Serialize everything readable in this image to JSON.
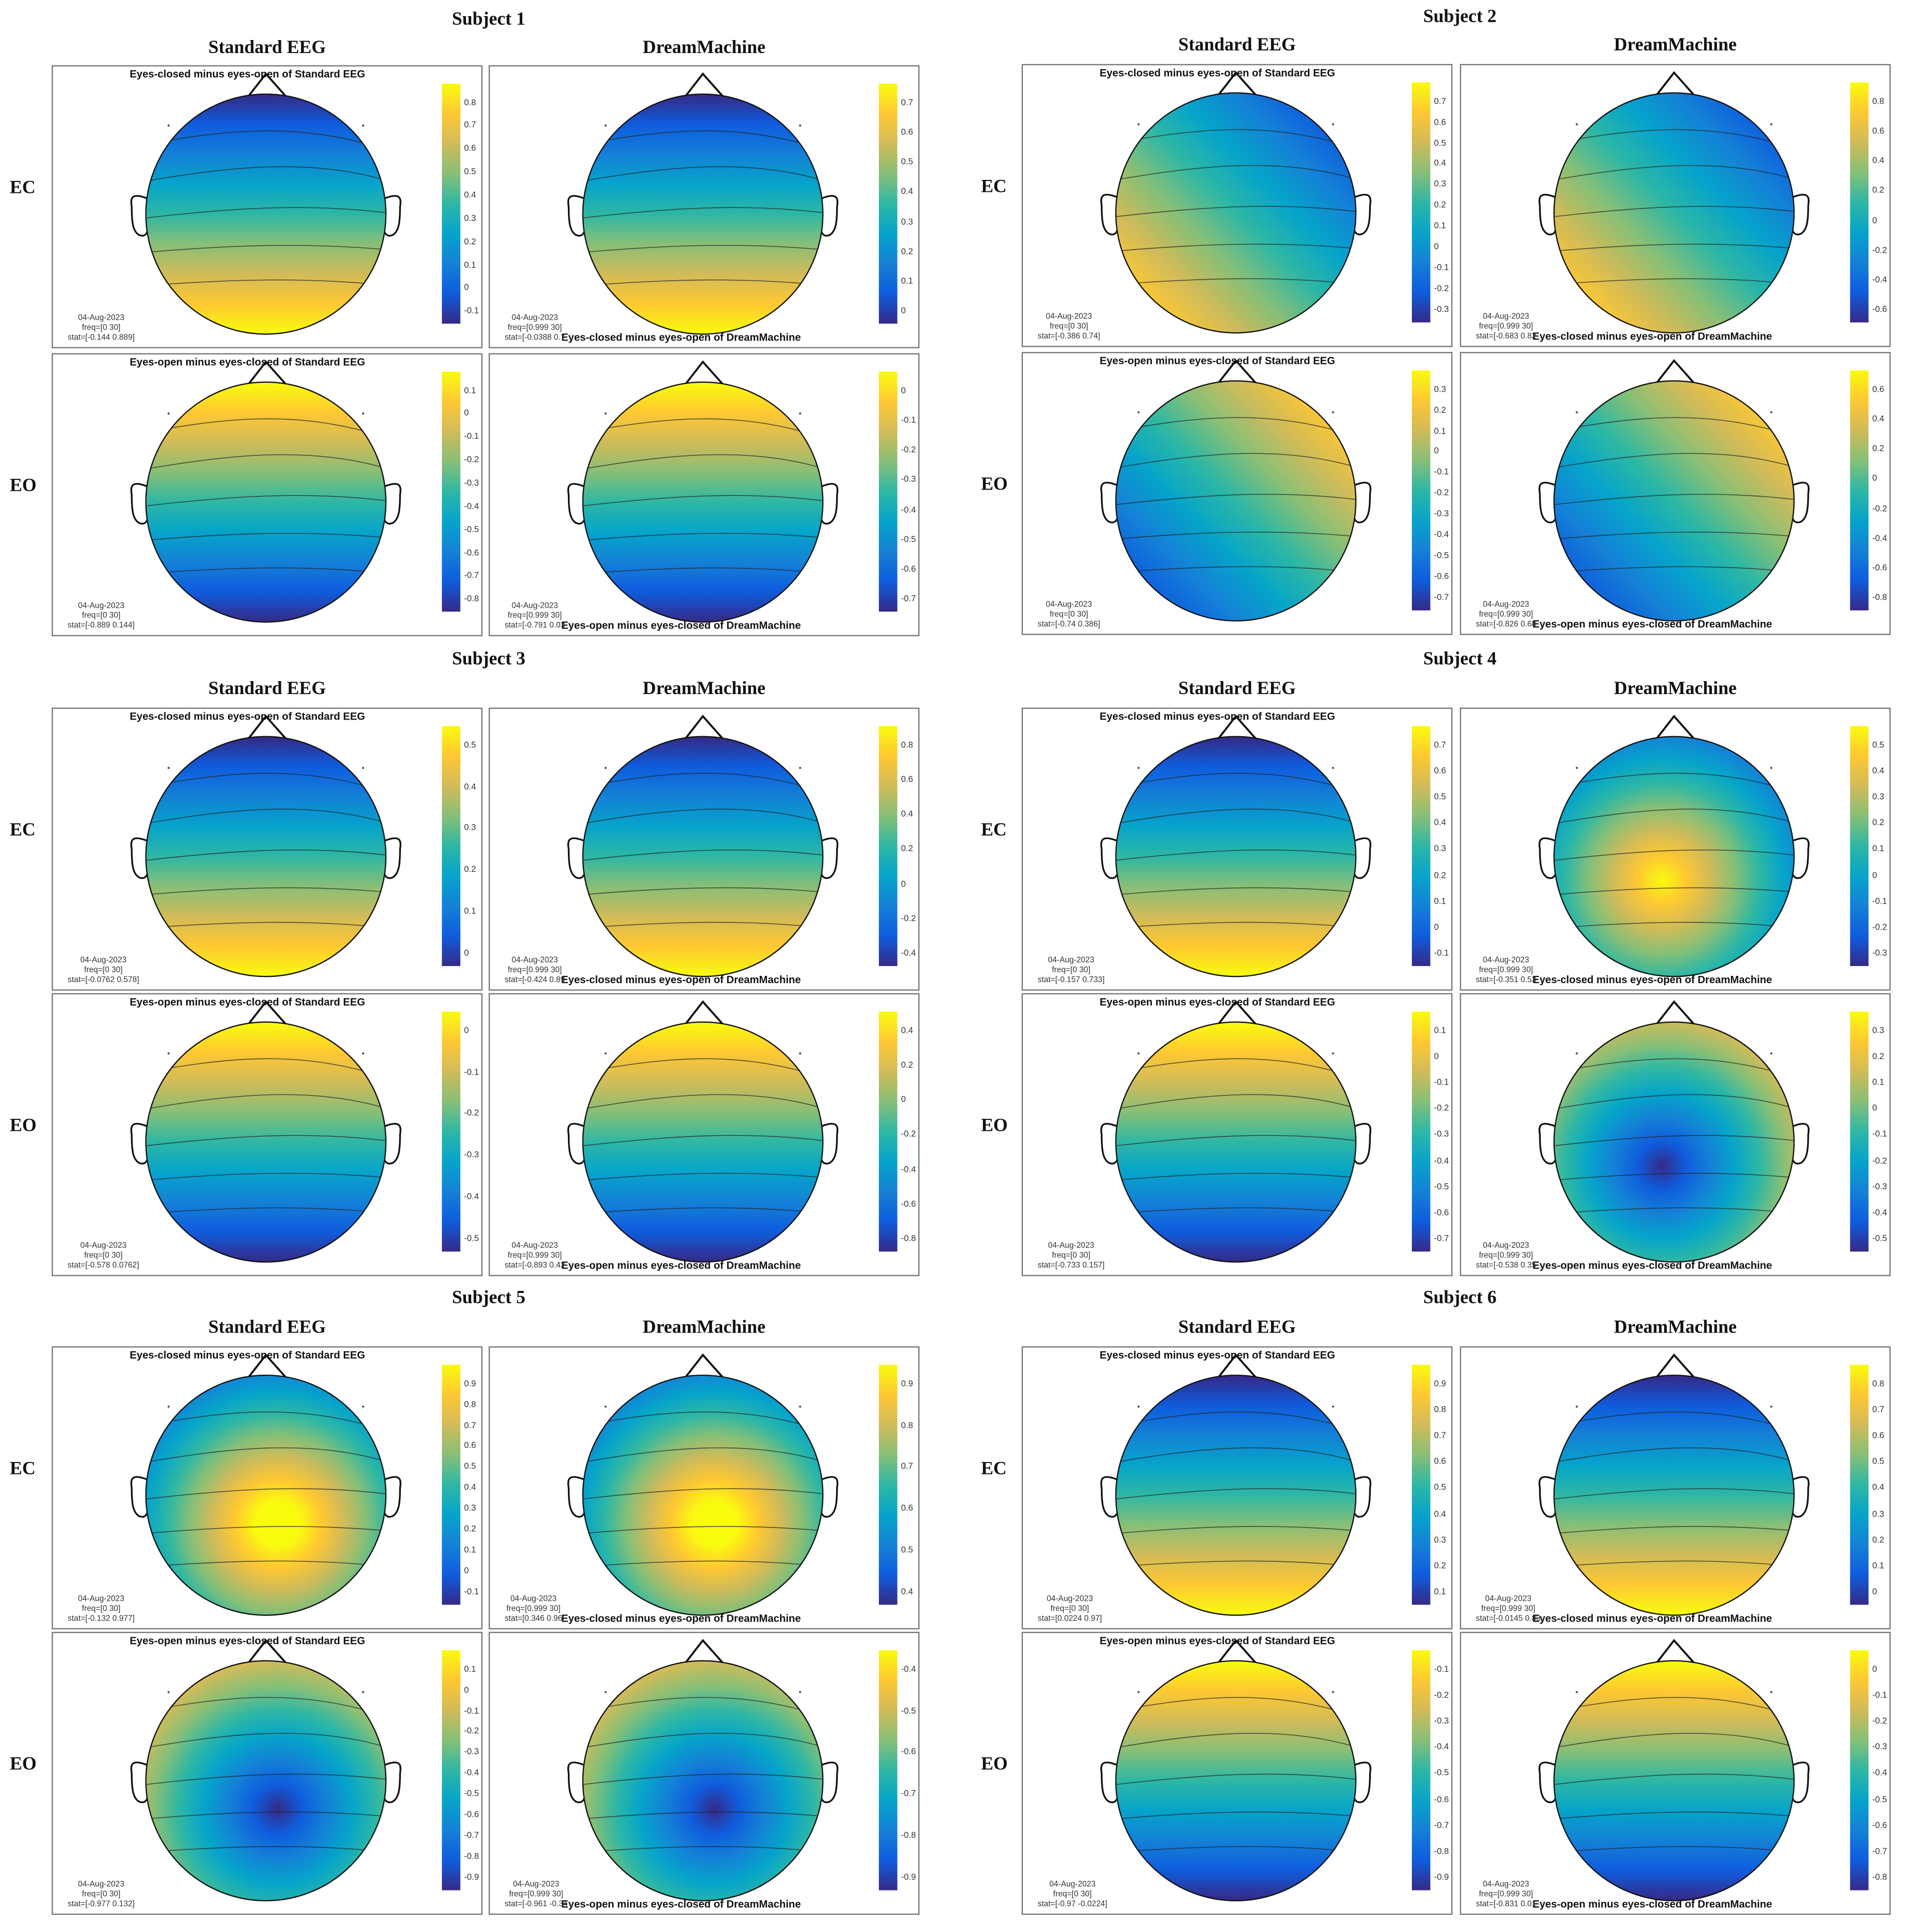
{
  "chart_data": {
    "type": "heatmap",
    "columns": [
      "Standard EEG",
      "DreamMachine"
    ],
    "conditions": [
      "EC",
      "EO"
    ],
    "colormap": [
      "#352a87",
      "#0f5cdd",
      "#1481d6",
      "#06a4ca",
      "#2eb7a4",
      "#87bf77",
      "#d1bb59",
      "#fec832",
      "#f9fb0e"
    ],
    "subjects": [
      {
        "title": "Subject 1",
        "panels": [
          {
            "title": "Eyes-closed minus eyes-open of Standard EEG",
            "date": "04-Aug-2023",
            "freq": "freq=[0 30]",
            "stat": "stat=[-0.144 0.889]",
            "ticks": [
              "0.8",
              "0.7",
              "0.6",
              "0.5",
              "0.4",
              "0.3",
              "0.2",
              "0.1",
              "0",
              "-0.1"
            ]
          },
          {
            "title": "Eyes-closed minus eyes-open of DreamMachine",
            "date": "04-Aug-2023",
            "freq": "freq=[0.999 30]",
            "stat": "stat=[-0.0388 0.7",
            "ticks": [
              "0.7",
              "0.6",
              "0.5",
              "0.4",
              "0.3",
              "0.2",
              "0.1",
              "0"
            ]
          },
          {
            "title": "Eyes-open minus eyes-closed of Standard EEG",
            "date": "04-Aug-2023",
            "freq": "freq=[0 30]",
            "stat": "stat=[-0.889 0.144]",
            "ticks": [
              "0.1",
              "0",
              "-0.1",
              "-0.2",
              "-0.3",
              "-0.4",
              "-0.5",
              "-0.6",
              "-0.7",
              "-0.8"
            ]
          },
          {
            "title": "Eyes-open minus eyes-closed of DreamMachine",
            "date": "04-Aug-2023",
            "freq": "freq=[0.999 30]",
            "stat": "stat=[-0.791 0.03",
            "ticks": [
              "0",
              "-0.1",
              "-0.2",
              "-0.3",
              "-0.4",
              "-0.5",
              "-0.6",
              "-0.7"
            ]
          }
        ]
      },
      {
        "title": "Subject 2",
        "panels": [
          {
            "title": "Eyes-closed minus eyes-open of Standard EEG",
            "date": "04-Aug-2023",
            "freq": "freq=[0 30]",
            "stat": "stat=[-0.386 0.74]",
            "ticks": [
              "0.7",
              "0.6",
              "0.5",
              "0.4",
              "0.3",
              "0.2",
              "0.1",
              "0",
              "-0.1",
              "-0.2",
              "-0.3"
            ]
          },
          {
            "title": "Eyes-closed minus eyes-open of DreamMachine",
            "date": "04-Aug-2023",
            "freq": "freq=[0.999 30]",
            "stat": "stat=[-0.683 0.82",
            "ticks": [
              "0.8",
              "0.6",
              "0.4",
              "0.2",
              "0",
              "-0.2",
              "-0.4",
              "-0.6"
            ]
          },
          {
            "title": "Eyes-open minus eyes-closed of Standard EEG",
            "date": "04-Aug-2023",
            "freq": "freq=[0 30]",
            "stat": "stat=[-0.74 0.386]",
            "ticks": [
              "0.3",
              "0.2",
              "0.1",
              "0",
              "-0.1",
              "-0.2",
              "-0.3",
              "-0.4",
              "-0.5",
              "-0.6",
              "-0.7"
            ]
          },
          {
            "title": "Eyes-open minus eyes-closed of DreamMachine",
            "date": "04-Aug-2023",
            "freq": "freq=[0.999 30]",
            "stat": "stat=[-0.826 0.68",
            "ticks": [
              "0.6",
              "0.4",
              "0.2",
              "0",
              "-0.2",
              "-0.4",
              "-0.6",
              "-0.8"
            ]
          }
        ]
      },
      {
        "title": "Subject 3",
        "panels": [
          {
            "title": "Eyes-closed minus eyes-open of Standard EEG",
            "date": "04-Aug-2023",
            "freq": "freq=[0 30]",
            "stat": "stat=[-0.0762 0.578]",
            "ticks": [
              "0.5",
              "0.4",
              "0.3",
              "0.2",
              "0.1",
              "0"
            ]
          },
          {
            "title": "Eyes-closed minus eyes-open of DreamMachine",
            "date": "04-Aug-2023",
            "freq": "freq=[0.999 30]",
            "stat": "stat=[-0.424 0.89",
            "ticks": [
              "0.8",
              "0.6",
              "0.4",
              "0.2",
              "0",
              "-0.2",
              "-0.4"
            ]
          },
          {
            "title": "Eyes-open minus eyes-closed of Standard EEG",
            "date": "04-Aug-2023",
            "freq": "freq=[0 30]",
            "stat": "stat=[-0.578 0.0762]",
            "ticks": [
              "0",
              "-0.1",
              "-0.2",
              "-0.3",
              "-0.4",
              "-0.5"
            ]
          },
          {
            "title": "Eyes-open minus eyes-closed of DreamMachine",
            "date": "04-Aug-2023",
            "freq": "freq=[0.999 30]",
            "stat": "stat=[-0.893 0.42",
            "ticks": [
              "0.4",
              "0.2",
              "0",
              "-0.2",
              "-0.4",
              "-0.6",
              "-0.8"
            ]
          }
        ]
      },
      {
        "title": "Subject 4",
        "panels": [
          {
            "title": "Eyes-closed minus eyes-open of Standard EEG",
            "date": "04-Aug-2023",
            "freq": "freq=[0 30]",
            "stat": "stat=[-0.157 0.733]",
            "ticks": [
              "0.7",
              "0.6",
              "0.5",
              "0.4",
              "0.3",
              "0.2",
              "0.1",
              "0",
              "-0.1"
            ]
          },
          {
            "title": "Eyes-closed minus eyes-open of DreamMachine",
            "date": "04-Aug-2023",
            "freq": "freq=[0.999 30]",
            "stat": "stat=[-0.351 0.53",
            "ticks": [
              "0.5",
              "0.4",
              "0.3",
              "0.2",
              "0.1",
              "0",
              "-0.1",
              "-0.2",
              "-0.3"
            ]
          },
          {
            "title": "Eyes-open minus eyes-closed of Standard EEG",
            "date": "04-Aug-2023",
            "freq": "freq=[0 30]",
            "stat": "stat=[-0.733 0.157]",
            "ticks": [
              "0.1",
              "0",
              "-0.1",
              "-0.2",
              "-0.3",
              "-0.4",
              "-0.5",
              "-0.6",
              "-0.7"
            ]
          },
          {
            "title": "Eyes-open minus eyes-closed of DreamMachine",
            "date": "04-Aug-2023",
            "freq": "freq=[0.999 30]",
            "stat": "stat=[-0.538 0.35",
            "ticks": [
              "0.3",
              "0.2",
              "0.1",
              "0",
              "-0.1",
              "-0.2",
              "-0.3",
              "-0.4",
              "-0.5"
            ]
          }
        ]
      },
      {
        "title": "Subject 5",
        "panels": [
          {
            "title": "Eyes-closed minus eyes-open of Standard EEG",
            "date": "04-Aug-2023",
            "freq": "freq=[0 30]",
            "stat": "stat=[-0.132 0.977]",
            "ticks": [
              "0.9",
              "0.8",
              "0.7",
              "0.6",
              "0.5",
              "0.4",
              "0.3",
              "0.2",
              "0.1",
              "0",
              "-0.1"
            ]
          },
          {
            "title": "Eyes-closed minus eyes-open of DreamMachine",
            "date": "04-Aug-2023",
            "freq": "freq=[0.999 30]",
            "stat": "stat=[0.346 0.96",
            "ticks": [
              "0.9",
              "0.8",
              "0.7",
              "0.6",
              "0.5",
              "0.4"
            ]
          },
          {
            "title": "Eyes-open minus eyes-closed of Standard EEG",
            "date": "04-Aug-2023",
            "freq": "freq=[0 30]",
            "stat": "stat=[-0.977 0.132]",
            "ticks": [
              "0.1",
              "0",
              "-0.1",
              "-0.2",
              "-0.3",
              "-0.4",
              "-0.5",
              "-0.6",
              "-0.7",
              "-0.8",
              "-0.9"
            ]
          },
          {
            "title": "Eyes-open minus eyes-closed of DreamMachine",
            "date": "04-Aug-2023",
            "freq": "freq=[0.999 30]",
            "stat": "stat=[-0.961 -0.34",
            "ticks": [
              "-0.4",
              "-0.5",
              "-0.6",
              "-0.7",
              "-0.8",
              "-0.9"
            ]
          }
        ]
      },
      {
        "title": "Subject 6",
        "panels": [
          {
            "title": "Eyes-closed minus eyes-open of Standard EEG",
            "date": "04-Aug-2023",
            "freq": "freq=[0 30]",
            "stat": "stat=[0.0224 0.97]",
            "ticks": [
              "0.9",
              "0.8",
              "0.7",
              "0.6",
              "0.5",
              "0.4",
              "0.3",
              "0.2",
              "0.1"
            ]
          },
          {
            "title": "Eyes-closed minus eyes-open of DreamMachine",
            "date": "04-Aug-2023",
            "freq": "freq=[0.999 30]",
            "stat": "stat=[-0.0145 0.83",
            "ticks": [
              "0.8",
              "0.7",
              "0.6",
              "0.5",
              "0.4",
              "0.3",
              "0.2",
              "0.1",
              "0"
            ]
          },
          {
            "title": "Eyes-open minus eyes-closed of Standard EEG",
            "date": "04-Aug-2023",
            "freq": "freq=[0 30]",
            "stat": "stat=[-0.97 -0.0224]",
            "ticks": [
              "-0.1",
              "-0.2",
              "-0.3",
              "-0.4",
              "-0.5",
              "-0.6",
              "-0.7",
              "-0.8",
              "-0.9"
            ]
          },
          {
            "title": "Eyes-open minus eyes-closed of DreamMachine",
            "date": "04-Aug-2023",
            "freq": "freq=[0.999 30]",
            "stat": "stat=[-0.831 0.01",
            "ticks": [
              "0",
              "-0.1",
              "-0.2",
              "-0.3",
              "-0.4",
              "-0.5",
              "-0.6",
              "-0.7",
              "-0.8"
            ]
          }
        ]
      }
    ]
  }
}
